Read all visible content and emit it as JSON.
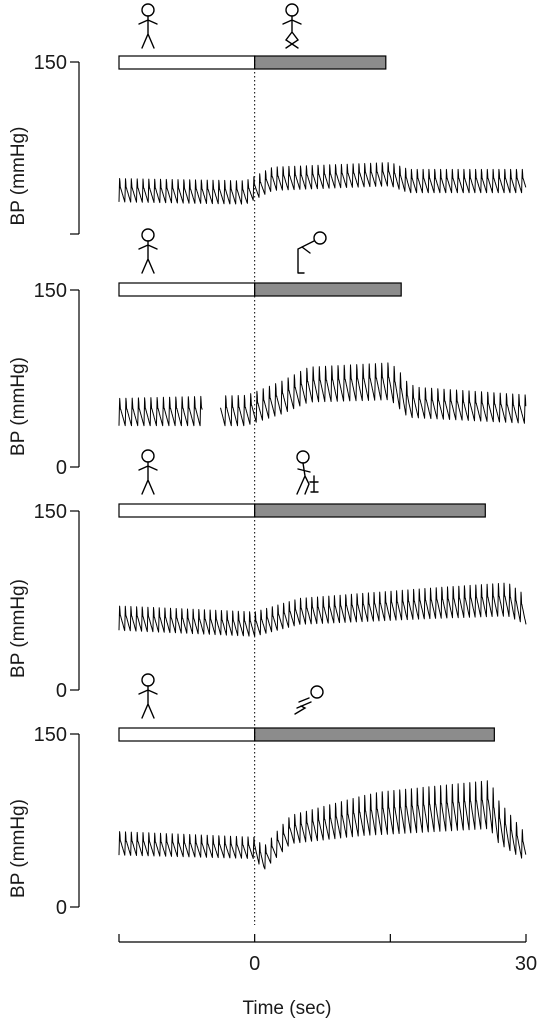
{
  "chart_data": {
    "type": "line",
    "x_axis": {
      "label": "Time (sec)",
      "range": [
        -15,
        30
      ],
      "ticks": [
        -15,
        0,
        15,
        30
      ],
      "tick_labels": [
        "",
        "0",
        "",
        "30"
      ]
    },
    "panels": [
      {
        "ylabel": "BP (mmHg)",
        "ylim": [
          0,
          150
        ],
        "ytick_labels": [
          {
            "value": 150,
            "label": "150"
          }
        ],
        "rest_icon": "standing-person-icon",
        "maneuver_icon": "crossed-legs-person-icon",
        "rest_interval": [
          -15,
          0
        ],
        "maneuver_interval": [
          0,
          14.5
        ],
        "series": {
          "t_start": -15,
          "t_end": 30,
          "hr": 1.55,
          "baseline": [
            [
              -15,
              28
            ],
            [
              -1,
              26
            ],
            [
              2,
              38
            ],
            [
              15,
              42
            ],
            [
              17,
              36
            ],
            [
              30,
              36
            ]
          ],
          "pulse": [
            [
              -15,
              22
            ],
            [
              30,
              22
            ]
          ]
        }
      },
      {
        "ylabel": "BP (mmHg)",
        "ylim": [
          0,
          150
        ],
        "ytick_labels": [
          {
            "value": 150,
            "label": "150"
          },
          {
            "value": 0,
            "label": "0"
          }
        ],
        "rest_icon": "standing-person-icon",
        "maneuver_icon": "bending-forward-person-icon",
        "rest_interval": [
          -15,
          0
        ],
        "maneuver_interval": [
          0,
          16.2
        ],
        "gaps": [
          [
            -5.8,
            -3.8
          ]
        ],
        "series": {
          "t_start": -15,
          "t_end": 30,
          "hr": 1.45,
          "baseline": [
            [
              -15,
              35
            ],
            [
              -1,
              35
            ],
            [
              3,
              45
            ],
            [
              6,
              55
            ],
            [
              15,
              57
            ],
            [
              17,
              42
            ],
            [
              30,
              37
            ]
          ],
          "pulse": [
            [
              -15,
              25
            ],
            [
              0,
              28
            ],
            [
              6,
              32
            ],
            [
              16,
              34
            ],
            [
              18,
              28
            ],
            [
              30,
              26
            ]
          ]
        }
      },
      {
        "ylabel": "BP (mmHg)",
        "ylim": [
          0,
          150
        ],
        "ytick_labels": [
          {
            "value": 150,
            "label": "150"
          },
          {
            "value": 0,
            "label": "0"
          }
        ],
        "rest_icon": "standing-person-icon",
        "maneuver_icon": "squat-chair-person-icon",
        "rest_interval": [
          -15,
          0
        ],
        "maneuver_interval": [
          0,
          25.5
        ],
        "series": {
          "t_start": -15,
          "t_end": 30,
          "hr": 1.6,
          "baseline": [
            [
              -15,
              50
            ],
            [
              0,
              45
            ],
            [
              5,
              55
            ],
            [
              20,
              60
            ],
            [
              28,
              62
            ],
            [
              30,
              55
            ]
          ],
          "pulse": [
            [
              -15,
              22
            ],
            [
              0,
              22
            ],
            [
              10,
              25
            ],
            [
              28,
              30
            ],
            [
              30,
              26
            ]
          ]
        }
      },
      {
        "ylabel": "BP (mmHg)",
        "ylim": [
          0,
          150
        ],
        "ytick_labels": [
          {
            "value": 150,
            "label": "150"
          },
          {
            "value": 0,
            "label": "0"
          }
        ],
        "rest_icon": "standing-person-icon",
        "maneuver_icon": "squatting-person-icon",
        "rest_interval": [
          -15,
          0
        ],
        "maneuver_interval": [
          0,
          26.5
        ],
        "series": {
          "t_start": -15,
          "t_end": 30,
          "hr": 1.55,
          "baseline": [
            [
              -15,
              45
            ],
            [
              0,
              42
            ],
            [
              1,
              32
            ],
            [
              4,
              55
            ],
            [
              12,
              62
            ],
            [
              26,
              68
            ],
            [
              27,
              55
            ],
            [
              30,
              40
            ]
          ],
          "pulse": [
            [
              -15,
              22
            ],
            [
              0,
              20
            ],
            [
              3,
              25
            ],
            [
              14,
              40
            ],
            [
              26,
              45
            ],
            [
              30,
              25
            ]
          ]
        }
      }
    ]
  }
}
